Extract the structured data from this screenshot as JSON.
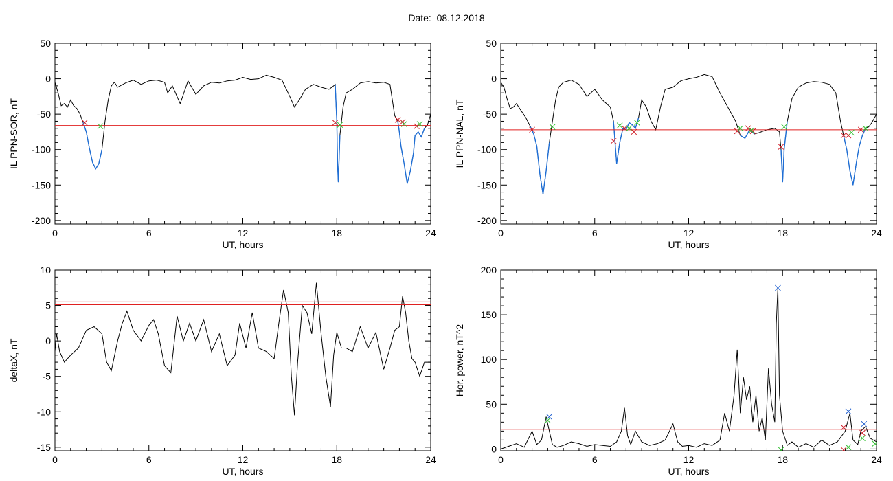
{
  "page": {
    "title": "Date:  08.12.2018"
  },
  "colors": {
    "trace": "#000000",
    "highlight": "#1f6fd6",
    "threshold": "#e02020",
    "start_marker": "#d0202a",
    "end_marker": "#30c030",
    "peak_marker": "#2060d0"
  },
  "chart_data": [
    {
      "id": "il-ppn-sor",
      "type": "line",
      "xlabel": "UT, hours",
      "ylabel": "IL PPN-SOR, nT",
      "xlim": [
        0,
        24
      ],
      "ylim": [
        -205,
        50
      ],
      "xticks": [
        0,
        6,
        12,
        18,
        24
      ],
      "yticks": [
        50,
        0,
        -50,
        -100,
        -150,
        -200
      ],
      "threshold": [
        -66
      ],
      "series": [
        {
          "x": [
            0,
            0.2,
            0.4,
            0.6,
            0.8,
            1.0,
            1.2,
            1.4,
            1.6,
            1.8,
            2.0,
            2.2,
            2.4,
            2.6,
            2.8,
            3.0,
            3.2,
            3.4,
            3.6,
            3.8,
            4.0,
            4.5,
            5.0,
            5.5,
            6.0,
            6.5,
            7.0,
            7.2,
            7.5,
            8.0,
            8.5,
            9.0,
            9.5,
            10.0,
            10.5,
            11.0,
            11.5,
            12.0,
            12.5,
            13.0,
            13.5,
            14.0,
            14.5,
            15.0,
            15.3,
            15.6,
            16.0,
            16.5,
            17.0,
            17.5,
            17.8,
            17.9,
            18.0,
            18.05,
            18.1,
            18.2,
            18.4,
            18.6,
            19.0,
            19.5,
            20.0,
            20.5,
            21.0,
            21.4,
            21.7,
            21.9,
            22.0,
            22.1,
            22.3,
            22.5,
            22.7,
            22.9,
            23.0,
            23.2,
            23.4,
            23.6,
            23.8,
            24.0
          ],
          "values": [
            -5,
            -20,
            -38,
            -35,
            -40,
            -30,
            -38,
            -42,
            -50,
            -62,
            -75,
            -98,
            -118,
            -127,
            -120,
            -100,
            -60,
            -30,
            -10,
            -5,
            -12,
            -6,
            -2,
            -8,
            -3,
            -2,
            -5,
            -20,
            -10,
            -35,
            -3,
            -22,
            -10,
            -5,
            -6,
            -3,
            -2,
            2,
            -1,
            0,
            5,
            2,
            -2,
            -25,
            -40,
            -30,
            -15,
            -8,
            -12,
            -15,
            -10,
            -8,
            -60,
            -120,
            -146,
            -80,
            -40,
            -20,
            -15,
            -6,
            -4,
            -6,
            -5,
            -8,
            -52,
            -60,
            -75,
            -95,
            -120,
            -148,
            -130,
            -105,
            -80,
            -75,
            -82,
            -70,
            -65,
            -50
          ]
        }
      ],
      "highlights": [
        [
          1.8,
          3.0
        ],
        [
          17.9,
          18.3
        ],
        [
          21.9,
          23.6
        ]
      ],
      "markers_start": [
        [
          1.9,
          -62
        ],
        [
          17.9,
          -62
        ],
        [
          21.9,
          -58
        ],
        [
          22.2,
          -61
        ],
        [
          23.1,
          -67
        ]
      ],
      "markers_end": [
        [
          2.9,
          -67
        ],
        [
          18.2,
          -65
        ],
        [
          22.3,
          -64
        ],
        [
          23.3,
          -64
        ]
      ]
    },
    {
      "id": "il-ppn-nal",
      "type": "line",
      "xlabel": "UT, hours",
      "ylabel": "IL PPN-NAL, nT",
      "xlim": [
        0,
        24
      ],
      "ylim": [
        -205,
        50
      ],
      "xticks": [
        0,
        6,
        12,
        18,
        24
      ],
      "yticks": [
        50,
        0,
        -50,
        -100,
        -150,
        -200
      ],
      "threshold": [
        -72
      ],
      "series": [
        {
          "x": [
            0,
            0.2,
            0.4,
            0.6,
            0.8,
            1.0,
            1.3,
            1.6,
            1.9,
            2.1,
            2.3,
            2.5,
            2.7,
            2.9,
            3.1,
            3.3,
            3.5,
            3.7,
            4.0,
            4.5,
            5.0,
            5.5,
            6.0,
            6.5,
            7.0,
            7.2,
            7.4,
            7.6,
            7.8,
            8.0,
            8.2,
            8.4,
            8.6,
            8.8,
            9.0,
            9.3,
            9.6,
            9.9,
            10.2,
            10.5,
            11.0,
            11.5,
            12.0,
            12.5,
            13.0,
            13.5,
            14.0,
            14.5,
            15.0,
            15.3,
            15.6,
            15.9,
            16.2,
            16.5,
            17.0,
            17.5,
            17.8,
            17.9,
            18.0,
            18.1,
            18.3,
            18.6,
            19.0,
            19.5,
            20.0,
            20.5,
            21.0,
            21.4,
            21.7,
            21.9,
            22.1,
            22.3,
            22.5,
            22.7,
            22.9,
            23.1,
            23.3,
            23.5,
            23.7,
            24.0
          ],
          "values": [
            -5,
            -12,
            -28,
            -42,
            -40,
            -35,
            -45,
            -55,
            -68,
            -78,
            -95,
            -135,
            -163,
            -130,
            -90,
            -60,
            -30,
            -12,
            -5,
            -2,
            -8,
            -25,
            -15,
            -30,
            -40,
            -60,
            -120,
            -90,
            -70,
            -72,
            -62,
            -65,
            -70,
            -55,
            -30,
            -40,
            -60,
            -72,
            -40,
            -15,
            -12,
            -3,
            0,
            2,
            6,
            3,
            -20,
            -40,
            -60,
            -80,
            -84,
            -72,
            -78,
            -76,
            -72,
            -70,
            -75,
            -100,
            -146,
            -100,
            -60,
            -28,
            -12,
            -6,
            -4,
            -5,
            -8,
            -20,
            -60,
            -80,
            -100,
            -130,
            -150,
            -120,
            -95,
            -80,
            -70,
            -68,
            -62,
            -50
          ]
        }
      ],
      "highlights": [
        [
          1.9,
          3.2
        ],
        [
          7.2,
          8.9
        ],
        [
          15.1,
          16.3
        ],
        [
          17.9,
          18.3
        ],
        [
          21.9,
          23.3
        ]
      ],
      "markers_start": [
        [
          2.0,
          -72
        ],
        [
          7.2,
          -88
        ],
        [
          7.9,
          -70
        ],
        [
          8.5,
          -75
        ],
        [
          15.1,
          -74
        ],
        [
          15.8,
          -70
        ],
        [
          16.1,
          -74
        ],
        [
          17.9,
          -96
        ],
        [
          21.9,
          -80
        ],
        [
          22.2,
          -80
        ],
        [
          23.0,
          -72
        ]
      ],
      "markers_end": [
        [
          3.3,
          -68
        ],
        [
          7.6,
          -66
        ],
        [
          8.2,
          -70
        ],
        [
          8.7,
          -62
        ],
        [
          15.3,
          -70
        ],
        [
          16.0,
          -73
        ],
        [
          18.1,
          -68
        ],
        [
          22.4,
          -76
        ],
        [
          23.3,
          -70
        ]
      ]
    },
    {
      "id": "deltax",
      "type": "line",
      "xlabel": "UT, hours",
      "ylabel": "deltaX, nT",
      "xlim": [
        0,
        24
      ],
      "ylim": [
        -15.5,
        10
      ],
      "xticks": [
        0,
        6,
        12,
        18,
        24
      ],
      "yticks": [
        10,
        5,
        0,
        -5,
        -10,
        -15
      ],
      "threshold": [
        5.5,
        5.1
      ],
      "series": [
        {
          "x": [
            0,
            0.1,
            0.3,
            0.6,
            1.0,
            1.5,
            2.0,
            2.5,
            3.0,
            3.3,
            3.6,
            4.0,
            4.3,
            4.6,
            5.0,
            5.5,
            6.0,
            6.3,
            6.6,
            7.0,
            7.4,
            7.8,
            8.2,
            8.6,
            9.0,
            9.5,
            10.0,
            10.5,
            11.0,
            11.5,
            11.8,
            12.2,
            12.6,
            13.0,
            13.5,
            14.0,
            14.3,
            14.6,
            14.9,
            15.1,
            15.3,
            15.5,
            15.8,
            16.1,
            16.4,
            16.7,
            17.0,
            17.3,
            17.6,
            17.8,
            18.0,
            18.3,
            18.6,
            19.0,
            19.5,
            20.0,
            20.5,
            21.0,
            21.4,
            21.7,
            22.0,
            22.2,
            22.4,
            22.6,
            22.8,
            23.0,
            23.3,
            23.6,
            24.0
          ],
          "values": [
            -1.5,
            1,
            -1.5,
            -3,
            -2,
            -1,
            1.5,
            2,
            1,
            -3,
            -4.2,
            0,
            2.5,
            4.2,
            1.5,
            0,
            2.2,
            3,
            1,
            -3.5,
            -4.5,
            3.5,
            0,
            2.5,
            0,
            3,
            -1.5,
            1,
            -3.5,
            -2,
            2.5,
            -1,
            4,
            -1,
            -1.5,
            -2.5,
            2.5,
            7.2,
            4,
            -5,
            -10.5,
            -3,
            5,
            4,
            1,
            8.2,
            1,
            -5,
            -9.3,
            -2,
            1.2,
            -1,
            -1,
            -1.5,
            2,
            -1,
            1.2,
            -4,
            -1,
            1.5,
            2,
            6.3,
            4,
            0,
            -2.5,
            -3,
            -5,
            -3,
            -3
          ]
        }
      ]
    },
    {
      "id": "hor-power",
      "type": "line",
      "xlabel": "UT, hours",
      "ylabel": "Hor. power, nT^2",
      "xlim": [
        0,
        24
      ],
      "ylim": [
        -2,
        200
      ],
      "xticks": [
        0,
        6,
        12,
        18,
        24
      ],
      "yticks": [
        200,
        150,
        100,
        50,
        0
      ],
      "threshold": [
        22
      ],
      "series": [
        {
          "x": [
            0,
            0.5,
            1.0,
            1.5,
            2.0,
            2.3,
            2.6,
            2.9,
            3.1,
            3.3,
            3.6,
            4.0,
            4.5,
            5.0,
            5.5,
            6.0,
            6.5,
            7.0,
            7.4,
            7.7,
            7.9,
            8.1,
            8.3,
            8.6,
            9.0,
            9.5,
            10.0,
            10.5,
            11.0,
            11.3,
            11.6,
            12.0,
            12.5,
            13.0,
            13.5,
            14.0,
            14.3,
            14.6,
            14.9,
            15.1,
            15.3,
            15.5,
            15.7,
            15.9,
            16.1,
            16.3,
            16.5,
            16.7,
            16.9,
            17.1,
            17.3,
            17.5,
            17.6,
            17.7,
            17.8,
            18.0,
            18.3,
            18.6,
            19.0,
            19.5,
            20.0,
            20.5,
            21.0,
            21.5,
            22.0,
            22.3,
            22.5,
            22.8,
            23.0,
            23.3,
            23.6,
            24.0
          ],
          "values": [
            0,
            3,
            6,
            2,
            20,
            5,
            10,
            36,
            20,
            5,
            2,
            4,
            8,
            6,
            3,
            5,
            4,
            3,
            8,
            20,
            46,
            15,
            5,
            20,
            8,
            4,
            6,
            10,
            28,
            8,
            3,
            4,
            2,
            6,
            4,
            10,
            40,
            20,
            60,
            111,
            40,
            80,
            55,
            70,
            30,
            60,
            20,
            35,
            10,
            90,
            50,
            30,
            140,
            180,
            60,
            20,
            4,
            8,
            2,
            6,
            2,
            10,
            4,
            8,
            20,
            40,
            10,
            5,
            20,
            25,
            12,
            8
          ]
        }
      ],
      "markers_start": [
        [
          21.9,
          24
        ],
        [
          23.1,
          18
        ],
        [
          21.9,
          -1
        ]
      ],
      "markers_end": [
        [
          3.0,
          32
        ],
        [
          17.9,
          -1
        ],
        [
          22.2,
          2
        ],
        [
          23.1,
          12
        ],
        [
          23.9,
          6
        ]
      ],
      "markers_peak": [
        [
          3.1,
          36
        ],
        [
          17.7,
          180
        ],
        [
          22.2,
          42
        ],
        [
          23.2,
          28
        ]
      ]
    }
  ]
}
